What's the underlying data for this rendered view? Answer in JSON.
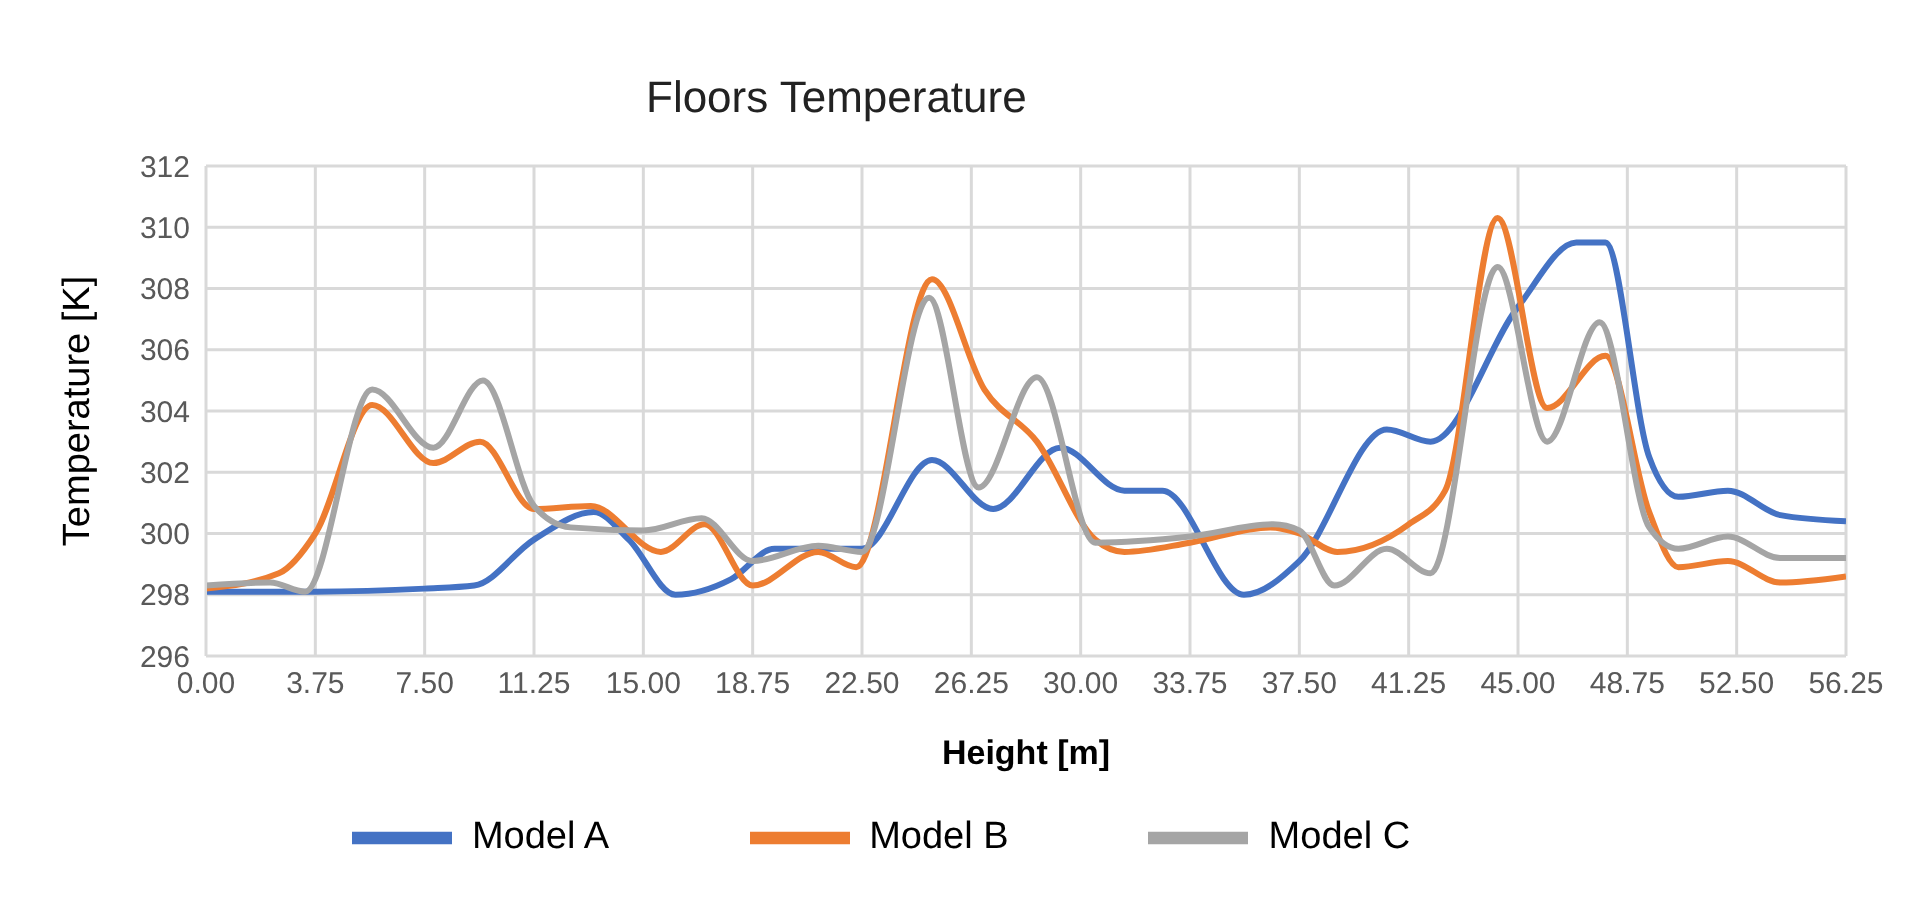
{
  "chart_data": {
    "type": "line",
    "title": "Floors Temperature",
    "xlabel": "Height [m]",
    "ylabel": "Temperature [K]",
    "xlim": [
      0,
      56.25
    ],
    "ylim": [
      296,
      312
    ],
    "xticks": [
      {
        "value": 0,
        "label": "0.00"
      },
      {
        "value": 3.75,
        "label": "3.75"
      },
      {
        "value": 7.5,
        "label": "7.50"
      },
      {
        "value": 11.25,
        "label": "11.25"
      },
      {
        "value": 15,
        "label": "15.00"
      },
      {
        "value": 18.75,
        "label": "18.75"
      },
      {
        "value": 22.5,
        "label": "22.50"
      },
      {
        "value": 26.25,
        "label": "26.25"
      },
      {
        "value": 30,
        "label": "30.00"
      },
      {
        "value": 33.75,
        "label": "33.75"
      },
      {
        "value": 37.5,
        "label": "37.50"
      },
      {
        "value": 41.25,
        "label": "41.25"
      },
      {
        "value": 45,
        "label": "45.00"
      },
      {
        "value": 48.75,
        "label": "48.75"
      },
      {
        "value": 52.5,
        "label": "52.50"
      },
      {
        "value": 56.25,
        "label": "56.25"
      }
    ],
    "yticks": [
      296,
      298,
      300,
      302,
      304,
      306,
      308,
      310,
      312
    ],
    "grid": true,
    "legend": "bottom",
    "marker": "none",
    "line_style": "solid",
    "series": [
      {
        "name": "Model A",
        "color": "#4472c4",
        "x": [
          0,
          3.75,
          7.5,
          9.2,
          11.25,
          13.3,
          14.5,
          16.1,
          18,
          19.5,
          22.5,
          24.9,
          27,
          29.3,
          31.5,
          32.8,
          35.6,
          37.5,
          40.5,
          42,
          45,
          47,
          48,
          49.5,
          50.5,
          52.2,
          54,
          56.25
        ],
        "values": [
          298.1,
          298.1,
          298.2,
          298.3,
          299.8,
          300.7,
          299.8,
          298.0,
          298.5,
          299.5,
          299.5,
          302.4,
          300.8,
          302.8,
          301.4,
          301.4,
          298.0,
          299.1,
          303.4,
          303.0,
          307.4,
          309.5,
          309.5,
          302.5,
          301.2,
          301.4,
          300.6,
          300.4
        ]
      },
      {
        "name": "Model B",
        "color": "#ed7d31",
        "x": [
          0,
          2.5,
          3.75,
          5.7,
          7.8,
          9.4,
          11.25,
          13.2,
          15.6,
          17.1,
          18.75,
          21,
          22.3,
          24.9,
          26.7,
          28.5,
          30.5,
          31.5,
          33.75,
          36.5,
          37.5,
          38.8,
          41.25,
          42.5,
          44.3,
          46,
          48,
          49.5,
          50.5,
          52.2,
          54,
          56.25
        ],
        "values": [
          298.2,
          298.7,
          300.0,
          304.2,
          302.3,
          303.0,
          300.8,
          300.9,
          299.4,
          300.3,
          298.3,
          299.4,
          298.9,
          308.3,
          304.7,
          303.0,
          299.8,
          299.4,
          299.7,
          300.2,
          300.0,
          299.4,
          300.3,
          301.4,
          310.3,
          304.1,
          305.8,
          300.7,
          298.9,
          299.1,
          298.4,
          298.6
        ]
      },
      {
        "name": "Model C",
        "color": "#a5a5a5",
        "x": [
          0,
          2.2,
          3.4,
          5.7,
          7.8,
          9.5,
          11.25,
          12.5,
          15,
          17,
          18.75,
          21,
          22.5,
          24.8,
          26.5,
          28.5,
          30.5,
          33.75,
          36.6,
          37.5,
          38.7,
          40.5,
          42,
          44.3,
          46,
          47.8,
          49.5,
          50.5,
          52.2,
          54,
          56.25
        ],
        "values": [
          298.3,
          298.4,
          298.1,
          304.7,
          302.8,
          305.0,
          300.9,
          300.2,
          300.1,
          300.5,
          299.1,
          299.6,
          299.4,
          307.7,
          301.5,
          305.1,
          299.7,
          299.9,
          300.3,
          300.1,
          298.3,
          299.5,
          298.7,
          308.7,
          303.0,
          306.9,
          300.2,
          299.5,
          299.9,
          299.2,
          299.2
        ]
      }
    ]
  }
}
